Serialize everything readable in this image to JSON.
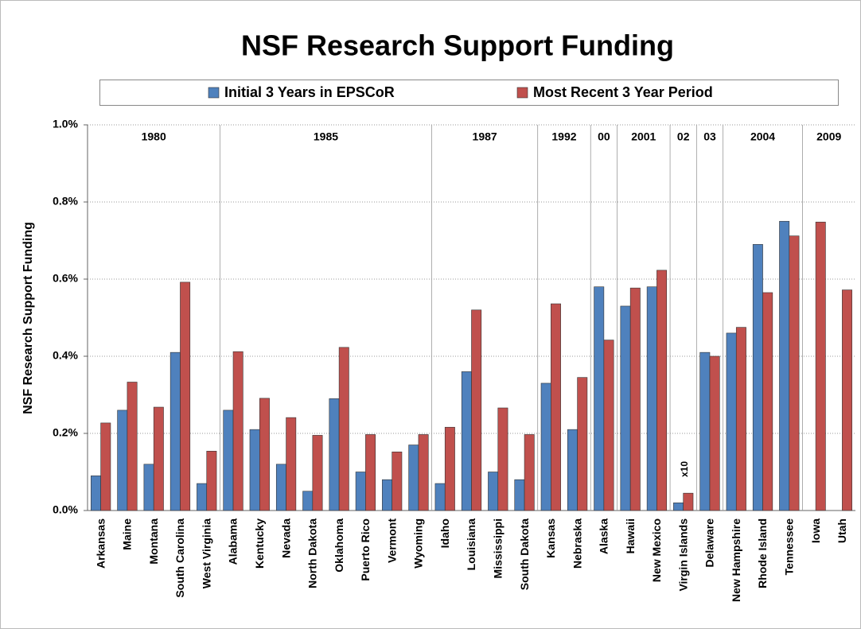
{
  "chart_data": {
    "type": "bar",
    "title": "NSF Research Support Funding",
    "y_label": "NSF Research Support Funding",
    "categories": [
      "Arkansas",
      "Maine",
      "Montana",
      "South Carolina",
      "West Virginia",
      "Alabama",
      "Kentucky",
      "Nevada",
      "North Dakota",
      "Oklahoma",
      "Puerto Rico",
      "Vermont",
      "Wyoming",
      "Idaho",
      "Louisiana",
      "Mississippi",
      "South Dakota",
      "Kansas",
      "Nebraska",
      "Alaska",
      "Hawaii",
      "New Mexico",
      "Virgin Islands",
      "Delaware",
      "New Hampshire",
      "Rhode Island",
      "Tennessee",
      "Iowa",
      "Utah"
    ],
    "periods": [
      "1980",
      "1980",
      "1980",
      "1980",
      "1980",
      "1985",
      "1985",
      "1985",
      "1985",
      "1985",
      "1985",
      "1985",
      "1985",
      "1987",
      "1987",
      "1987",
      "1987",
      "1992",
      "1992",
      "00",
      "2001",
      "2001",
      "02",
      "03",
      "2004",
      "2004",
      "2004",
      "2009",
      "2009"
    ],
    "series": [
      {
        "name": "Initial 3 Years in EPSCoR",
        "color": "#4f81bd",
        "values": [
          0.09,
          0.26,
          0.12,
          0.41,
          0.07,
          0.26,
          0.21,
          0.12,
          0.05,
          0.29,
          0.1,
          0.08,
          0.17,
          0.07,
          0.36,
          0.1,
          0.08,
          0.33,
          0.21,
          0.58,
          0.53,
          0.58,
          0.02,
          0.41,
          0.46,
          0.69,
          0.75,
          null,
          null
        ]
      },
      {
        "name": "Most Recent 3 Year Period",
        "color": "#c0504d",
        "values": [
          0.227,
          0.333,
          0.268,
          0.592,
          0.154,
          0.412,
          0.291,
          0.241,
          0.195,
          0.423,
          0.197,
          0.152,
          0.197,
          0.216,
          0.52,
          0.266,
          0.197,
          0.536,
          0.345,
          0.442,
          0.577,
          0.623,
          0.045,
          0.4,
          0.475,
          0.565,
          0.712,
          0.748,
          0.572
        ]
      }
    ],
    "annotations": [
      {
        "text": "x10",
        "category": "Virgin Islands"
      }
    ],
    "ylim": [
      0,
      1
    ],
    "yticks": [
      {
        "value": 0,
        "label": "0.0%"
      },
      {
        "value": 0.2,
        "label": "0.2%"
      },
      {
        "value": 0.4,
        "label": "0.4%"
      },
      {
        "value": 0.6,
        "label": "0.6%"
      },
      {
        "value": 0.8,
        "label": "0.8%"
      },
      {
        "value": 1,
        "label": "1.0%"
      }
    ],
    "grid": true,
    "legend": "top"
  }
}
